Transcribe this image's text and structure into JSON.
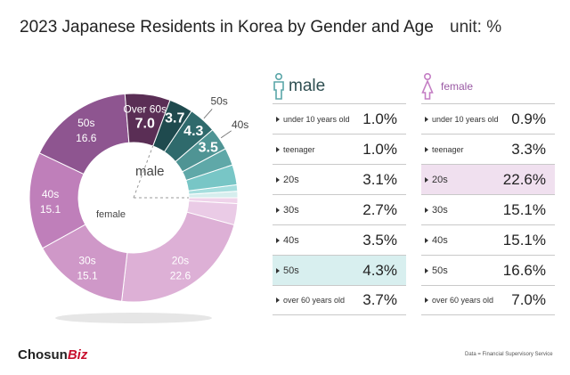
{
  "header": {
    "title": "2023 Japanese Residents in Korea by Gender and Age",
    "unit": "unit: %"
  },
  "legend": {
    "male": "male",
    "female": "female"
  },
  "rows": [
    {
      "age": "under 10 years old",
      "male": "1.0%",
      "female": "0.9%"
    },
    {
      "age": "teenager",
      "male": "1.0%",
      "female": "3.3%"
    },
    {
      "age": "20s",
      "male": "3.1%",
      "female": "22.6%"
    },
    {
      "age": "30s",
      "male": "2.7%",
      "female": "15.1%"
    },
    {
      "age": "40s",
      "male": "3.5%",
      "female": "15.1%"
    },
    {
      "age": "50s",
      "male": "4.3%",
      "female": "16.6%"
    },
    {
      "age": "over 60 years old",
      "male": "3.7%",
      "female": "7.0%"
    }
  ],
  "footer": {
    "logo_main": "Chosun",
    "logo_accent": "Biz",
    "source": "Data = Financial Supervisory Service"
  },
  "colors": {
    "male": [
      "#d6eeee",
      "#a6dede",
      "#78c6c6",
      "#5fa8a8",
      "#4f9494",
      "#2f6a6c",
      "#1f4a4e"
    ],
    "female": [
      "#efd3ea",
      "#eacbe6",
      "#ddb0d6",
      "#cf98c8",
      "#bf7fba",
      "#8e5590",
      "#5a2e55"
    ],
    "highlight_male": "#d8efef",
    "highlight_female": "#f0e0ef"
  },
  "chart_data": {
    "type": "pie",
    "title": "2023 Japanese Residents in Korea by Gender and Age",
    "unit": "%",
    "categories": [
      "under 10 years old",
      "teenager",
      "20s",
      "30s",
      "40s",
      "50s",
      "over 60 years old"
    ],
    "series": [
      {
        "name": "male",
        "values": [
          1.0,
          1.0,
          3.1,
          2.7,
          3.5,
          4.3,
          3.7
        ]
      },
      {
        "name": "female",
        "values": [
          0.9,
          3.3,
          22.6,
          15.1,
          15.1,
          16.6,
          7.0
        ]
      }
    ],
    "slice_labels": [
      {
        "series": "male",
        "category": "40s",
        "value": "3.5",
        "name": "40s"
      },
      {
        "series": "male",
        "category": "50s",
        "value": "4.3",
        "name": "50s"
      },
      {
        "series": "male",
        "category": "over 60 years old",
        "value": "3.7",
        "name": ""
      },
      {
        "series": "female",
        "category": "20s",
        "value": "22.6",
        "name": "20s"
      },
      {
        "series": "female",
        "category": "30s",
        "value": "15.1",
        "name": "30s"
      },
      {
        "series": "female",
        "category": "40s",
        "value": "15.1",
        "name": "40s"
      },
      {
        "series": "female",
        "category": "50s",
        "value": "16.6",
        "name": "50s"
      },
      {
        "series": "female",
        "category": "over 60 years old",
        "value": "7.0",
        "name": "Over 60s"
      }
    ]
  }
}
